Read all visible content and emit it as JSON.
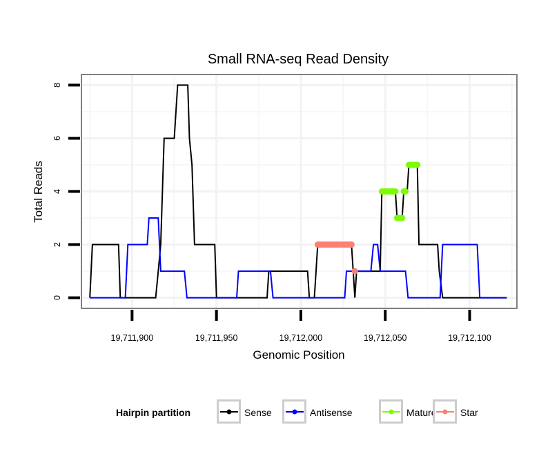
{
  "chart_data": {
    "type": "line",
    "title": "Small RNA-seq Read Density",
    "xlabel": "Genomic Position",
    "ylabel": "Total Reads",
    "xlim": [
      19711870,
      19712128
    ],
    "ylim": [
      -0.4,
      8.4
    ],
    "x_ticks": [
      19711900,
      19711950,
      19712000,
      19712050,
      19712100
    ],
    "x_tick_labels": [
      "19,711,900",
      "19,711,950",
      "19,712,000",
      "19,712,050",
      "19,712,100"
    ],
    "y_ticks": [
      0,
      2,
      4,
      6,
      8
    ],
    "y_tick_labels": [
      "0",
      "2",
      "4",
      "6",
      "8"
    ],
    "grid": true,
    "legend": {
      "title": "Hairpin partition",
      "placement": "bottom",
      "entries": [
        {
          "name": "Sense",
          "color": "#000000"
        },
        {
          "name": "Antisense",
          "color": "#0000ff"
        },
        {
          "name": "Mature",
          "color": "#7cfc00"
        },
        {
          "name": "Star",
          "color": "#fa8072"
        }
      ]
    },
    "series": [
      {
        "name": "Sense",
        "color": "#000000",
        "style": "line",
        "x": [
          19711875,
          19711876.5,
          19711892,
          19711893,
          19711914,
          19711915.5,
          19711917,
          19711919,
          19711925,
          19711927,
          19711933,
          19711934,
          19711935.5,
          19711937,
          19711949,
          19711950,
          19711980,
          19711981,
          19712004,
          19712005,
          19712008,
          19712010,
          19712030,
          19712031,
          19712032,
          19712033,
          19712047,
          19712048,
          19712056,
          19712057,
          19712060,
          19712061,
          19712063,
          19712064,
          19712069,
          19712070,
          19712081,
          19712082,
          19712084,
          19712122
        ],
        "y": [
          0,
          2,
          2,
          0,
          0,
          1,
          2,
          6,
          6,
          8,
          8,
          6,
          5,
          2,
          2,
          0,
          0,
          1,
          1,
          0,
          0,
          2,
          2,
          1,
          0,
          1,
          1,
          4,
          4,
          3,
          3,
          4,
          4,
          5,
          5,
          2,
          2,
          1,
          0,
          0
        ]
      },
      {
        "name": "Antisense",
        "color": "#0000ff",
        "style": "line",
        "x": [
          19711875,
          19711896,
          19711897.5,
          19711909,
          19711910,
          19711915.5,
          19711917,
          19711931,
          19711932.5,
          19711962,
          19711963,
          19711982,
          19711983.5,
          19712026,
          19712027,
          19712041.5,
          19712043,
          19712045.5,
          19712047,
          19712062,
          19712063.5,
          19712082.5,
          19712084,
          19712104.5,
          19712106,
          19712122
        ],
        "y": [
          0,
          0,
          2,
          2,
          3,
          3,
          1,
          1,
          0,
          0,
          1,
          1,
          0,
          0,
          1,
          1,
          2,
          2,
          1,
          1,
          0,
          0,
          2,
          2,
          0,
          0
        ]
      },
      {
        "name": "Star",
        "color": "#fa8072",
        "style": "points",
        "x": [
          19712010,
          19712011,
          19712012,
          19712013,
          19712014,
          19712015,
          19712016,
          19712017,
          19712018,
          19712019,
          19712020,
          19712021,
          19712022,
          19712023,
          19712024,
          19712025,
          19712026,
          19712027,
          19712028,
          19712029,
          19712030,
          19712032
        ],
        "y": [
          2,
          2,
          2,
          2,
          2,
          2,
          2,
          2,
          2,
          2,
          2,
          2,
          2,
          2,
          2,
          2,
          2,
          2,
          2,
          2,
          2,
          1
        ]
      },
      {
        "name": "Mature",
        "color": "#7cfc00",
        "style": "points",
        "x": [
          19712048,
          19712049,
          19712050,
          19712051,
          19712052,
          19712053,
          19712054,
          19712055,
          19712056,
          19712057,
          19712058,
          19712059,
          19712060,
          19712061,
          19712062,
          19712064,
          19712065,
          19712066,
          19712067,
          19712068,
          19712069
        ],
        "y": [
          4,
          4,
          4,
          4,
          4,
          4,
          4,
          4,
          4,
          3,
          3,
          3,
          3,
          4,
          4,
          5,
          5,
          5,
          5,
          5,
          5
        ]
      }
    ]
  }
}
